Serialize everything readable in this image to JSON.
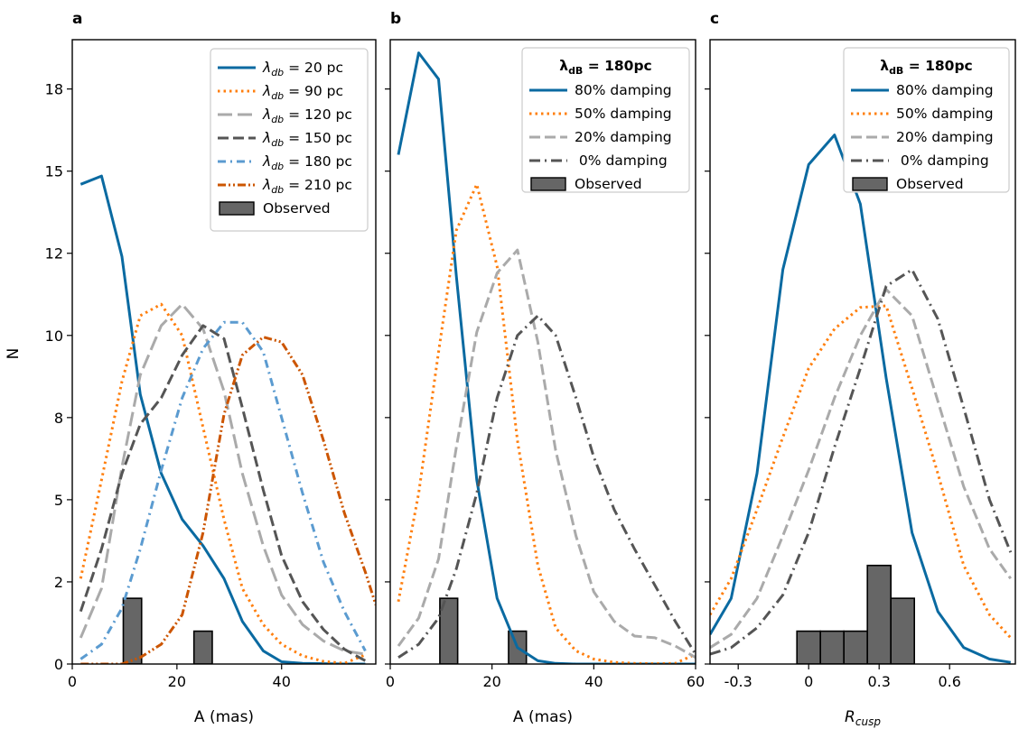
{
  "ylabel": "N",
  "chart_data": [
    {
      "type": "line",
      "panel": "a",
      "xlabel": "A (mas)",
      "xlim": [
        0,
        58
      ],
      "ylim": [
        0,
        19
      ],
      "xticks": [
        0,
        20,
        40
      ],
      "xtick_labels": [
        "0",
        "20",
        "40"
      ],
      "yticks": [
        0,
        2.5,
        5,
        7.5,
        10,
        12.5,
        15,
        17.5
      ],
      "ytick_labels": [
        "0",
        "2",
        "5",
        "8",
        "10",
        "12",
        "15",
        "18"
      ],
      "legend_title": "",
      "series": [
        {
          "name": "λdb = 20 pc",
          "legend_prefix": "λ",
          "legend_sub": "db",
          "legend_suffix": " = 20 pc",
          "color": "#0a6aa1",
          "dash": "",
          "x": [
            1.6,
            5.6,
            9.5,
            13,
            17,
            21,
            25,
            29,
            32.5,
            36.5,
            40,
            44,
            48,
            52,
            56
          ],
          "y": [
            14.6,
            14.85,
            12.4,
            8.2,
            5.8,
            4.4,
            3.6,
            2.6,
            1.3,
            0.4,
            0.07,
            0.02,
            0.01,
            0,
            0
          ]
        },
        {
          "name": "λdb = 90 pc",
          "legend_prefix": "λ",
          "legend_sub": "db",
          "legend_suffix": " = 90 pc",
          "color": "#ff7f0e",
          "dash": "2.5,4",
          "x": [
            1.6,
            5.6,
            9.5,
            13,
            17,
            21,
            25,
            29,
            32.5,
            36.5,
            40,
            44,
            48,
            52,
            56
          ],
          "y": [
            2.6,
            5.6,
            8.6,
            10.6,
            10.95,
            10.0,
            7.2,
            4.4,
            2.3,
            1.2,
            0.6,
            0.25,
            0.08,
            0.02,
            0.28
          ]
        },
        {
          "name": "λdb = 120 pc",
          "legend_prefix": "λ",
          "legend_sub": "db",
          "legend_suffix": " = 120 pc",
          "color": "#aaaaaa",
          "dash": "16,6",
          "x": [
            1.6,
            5.6,
            9.5,
            13,
            17,
            21,
            25,
            29,
            32.5,
            36.5,
            40,
            44,
            48,
            52,
            56
          ],
          "y": [
            0.8,
            2.3,
            6.0,
            8.8,
            10.3,
            10.95,
            10.2,
            8.3,
            5.8,
            3.6,
            2.1,
            1.2,
            0.7,
            0.4,
            0.3
          ]
        },
        {
          "name": "λdb = 150 pc",
          "legend_prefix": "λ",
          "legend_sub": "db",
          "legend_suffix": " = 150 pc",
          "color": "#555555",
          "dash": "12,5",
          "x": [
            1.6,
            5.6,
            9.5,
            13,
            17,
            21,
            25,
            29,
            32.5,
            36.5,
            40,
            44,
            48,
            52,
            56
          ],
          "y": [
            1.6,
            3.5,
            5.8,
            7.3,
            8.1,
            9.4,
            10.3,
            9.9,
            7.8,
            5.3,
            3.3,
            1.9,
            1.05,
            0.45,
            0.1
          ]
        },
        {
          "name": "λdb = 180 pc",
          "legend_prefix": "λ",
          "legend_sub": "db",
          "legend_suffix": " = 180 pc",
          "color": "#5b9bd0",
          "dash": "9,5,2,5",
          "x": [
            1.6,
            5.6,
            9.5,
            13,
            17,
            21,
            25,
            29,
            32.5,
            36.5,
            40,
            44,
            48,
            52,
            56
          ],
          "y": [
            0.15,
            0.6,
            1.7,
            3.5,
            5.9,
            8.1,
            9.6,
            10.4,
            10.4,
            9.5,
            7.5,
            5.2,
            3.1,
            1.6,
            0.4
          ]
        },
        {
          "name": "λdb = 210 pc",
          "legend_prefix": "λ",
          "legend_sub": "db",
          "legend_suffix": " = 210 pc",
          "color": "#cc5500",
          "dash": "9,3,2,3,2,3",
          "x": [
            1.6,
            5.6,
            9.5,
            13,
            17,
            21,
            25,
            29,
            32.5,
            36.5,
            40,
            44,
            48,
            52,
            56,
            58
          ],
          "y": [
            0,
            0,
            0,
            0.2,
            0.6,
            1.5,
            4.0,
            7.6,
            9.4,
            9.95,
            9.8,
            8.8,
            6.8,
            4.6,
            2.8,
            1.8
          ]
        }
      ],
      "histogram": {
        "name": "Observed",
        "bin_width": 3.5,
        "bins": [
          {
            "x": 9.75,
            "count": 2
          },
          {
            "x": 23.25,
            "count": 1
          }
        ]
      }
    },
    {
      "type": "line",
      "panel": "b",
      "xlabel": "A (mas)",
      "xlim": [
        0,
        60
      ],
      "ylim": [
        0,
        19
      ],
      "xticks": [
        0,
        20,
        40,
        60
      ],
      "xtick_labels": [
        "0",
        "20",
        "40",
        "60"
      ],
      "yticks": [
        0,
        2.5,
        5,
        7.5,
        10,
        12.5,
        15,
        17.5
      ],
      "ytick_labels": [],
      "legend_title": "λdB = 180pc",
      "series": [
        {
          "name": "80% damping",
          "color": "#0a6aa1",
          "dash": "",
          "x": [
            1.6,
            5.6,
            9.5,
            13,
            17,
            21,
            25,
            29,
            32.5,
            36.5,
            40,
            44,
            48,
            52,
            56,
            60
          ],
          "y": [
            15.5,
            18.6,
            17.8,
            11.8,
            5.6,
            2.0,
            0.5,
            0.1,
            0.02,
            0,
            0,
            0,
            0,
            0,
            0,
            0
          ]
        },
        {
          "name": "50% damping",
          "color": "#ff7f0e",
          "dash": "2.5,4",
          "x": [
            1.6,
            5.6,
            9.5,
            13,
            17,
            21,
            25,
            29,
            32.5,
            36.5,
            40,
            44,
            48,
            52,
            56,
            60
          ],
          "y": [
            1.9,
            5.2,
            9.5,
            13.2,
            14.6,
            12.1,
            6.8,
            3.0,
            1.1,
            0.4,
            0.15,
            0.05,
            0.02,
            0.01,
            0.02,
            0.3
          ]
        },
        {
          "name": "20% damping",
          "color": "#aaaaaa",
          "dash": "12,5",
          "x": [
            1.6,
            5.6,
            9.5,
            13,
            17,
            21,
            25,
            29,
            32.5,
            36.5,
            40,
            44,
            48,
            52,
            56,
            60
          ],
          "y": [
            0.55,
            1.4,
            3.2,
            6.6,
            10.1,
            11.9,
            12.6,
            9.8,
            6.5,
            3.9,
            2.2,
            1.3,
            0.85,
            0.8,
            0.55,
            0.2
          ]
        },
        {
          "name": " 0% damping",
          "color": "#555555",
          "dash": "12,5,2,5",
          "x": [
            1.6,
            5.6,
            9.5,
            13,
            17,
            21,
            25,
            29,
            32.5,
            36.5,
            40,
            44,
            48,
            52,
            56,
            60
          ],
          "y": [
            0.2,
            0.6,
            1.4,
            2.9,
            5.2,
            8.1,
            10.0,
            10.6,
            10.0,
            8.1,
            6.3,
            4.7,
            3.5,
            2.4,
            1.3,
            0.3
          ]
        }
      ],
      "histogram": {
        "name": "Observed",
        "bin_width": 3.5,
        "bins": [
          {
            "x": 9.75,
            "count": 2
          },
          {
            "x": 23.25,
            "count": 1
          }
        ]
      }
    },
    {
      "type": "line",
      "panel": "c",
      "xlabel": "Rcusp",
      "xlabel_main": "R",
      "xlabel_sub": "cusp",
      "xlim": [
        -0.42,
        0.88
      ],
      "ylim": [
        0,
        19
      ],
      "xticks": [
        -0.3,
        0,
        0.3,
        0.6
      ],
      "xtick_labels": [
        "-0.3",
        "0",
        "0.3",
        "0.6"
      ],
      "yticks": [
        0,
        2.5,
        5,
        7.5,
        10,
        12.5,
        15,
        17.5
      ],
      "ytick_labels": [],
      "legend_title": "λdB = 180pc",
      "series": [
        {
          "name": "80% damping",
          "color": "#0a6aa1",
          "dash": "",
          "x": [
            -0.42,
            -0.33,
            -0.22,
            -0.11,
            0,
            0.11,
            0.22,
            0.33,
            0.44,
            0.55,
            0.66,
            0.77,
            0.86
          ],
          "y": [
            0.9,
            2.0,
            5.8,
            12.0,
            15.2,
            16.1,
            14.0,
            8.7,
            4.0,
            1.6,
            0.5,
            0.15,
            0.05
          ]
        },
        {
          "name": "50% damping",
          "color": "#ff7f0e",
          "dash": "2.5,4",
          "x": [
            -0.42,
            -0.33,
            -0.22,
            -0.11,
            0,
            0.11,
            0.22,
            0.33,
            0.44,
            0.55,
            0.66,
            0.77,
            0.86
          ],
          "y": [
            1.5,
            2.6,
            4.7,
            6.9,
            9.0,
            10.2,
            10.85,
            10.9,
            8.4,
            5.8,
            3.0,
            1.5,
            0.8
          ]
        },
        {
          "name": "20% damping",
          "color": "#aaaaaa",
          "dash": "12,5",
          "x": [
            -0.42,
            -0.33,
            -0.22,
            -0.11,
            0,
            0.11,
            0.22,
            0.33,
            0.44,
            0.55,
            0.66,
            0.77,
            0.86
          ],
          "y": [
            0.5,
            0.9,
            2.0,
            3.9,
            5.9,
            8.1,
            10.0,
            11.4,
            10.6,
            8.0,
            5.4,
            3.5,
            2.6
          ]
        },
        {
          "name": " 0% damping",
          "color": "#555555",
          "dash": "12,5,2,5",
          "x": [
            -0.42,
            -0.33,
            -0.22,
            -0.11,
            0,
            0.11,
            0.22,
            0.33,
            0.44,
            0.55,
            0.66,
            0.77,
            0.86
          ],
          "y": [
            0.3,
            0.5,
            1.1,
            2.1,
            4.0,
            6.6,
            9.0,
            11.5,
            12.0,
            10.5,
            7.8,
            5.0,
            3.4
          ]
        }
      ],
      "histogram": {
        "name": "Observed",
        "bin_width": 0.1,
        "bins": [
          {
            "x": -0.05,
            "count": 1
          },
          {
            "x": 0.05,
            "count": 1
          },
          {
            "x": 0.15,
            "count": 1
          },
          {
            "x": 0.25,
            "count": 3
          },
          {
            "x": 0.35,
            "count": 2
          }
        ]
      }
    }
  ]
}
